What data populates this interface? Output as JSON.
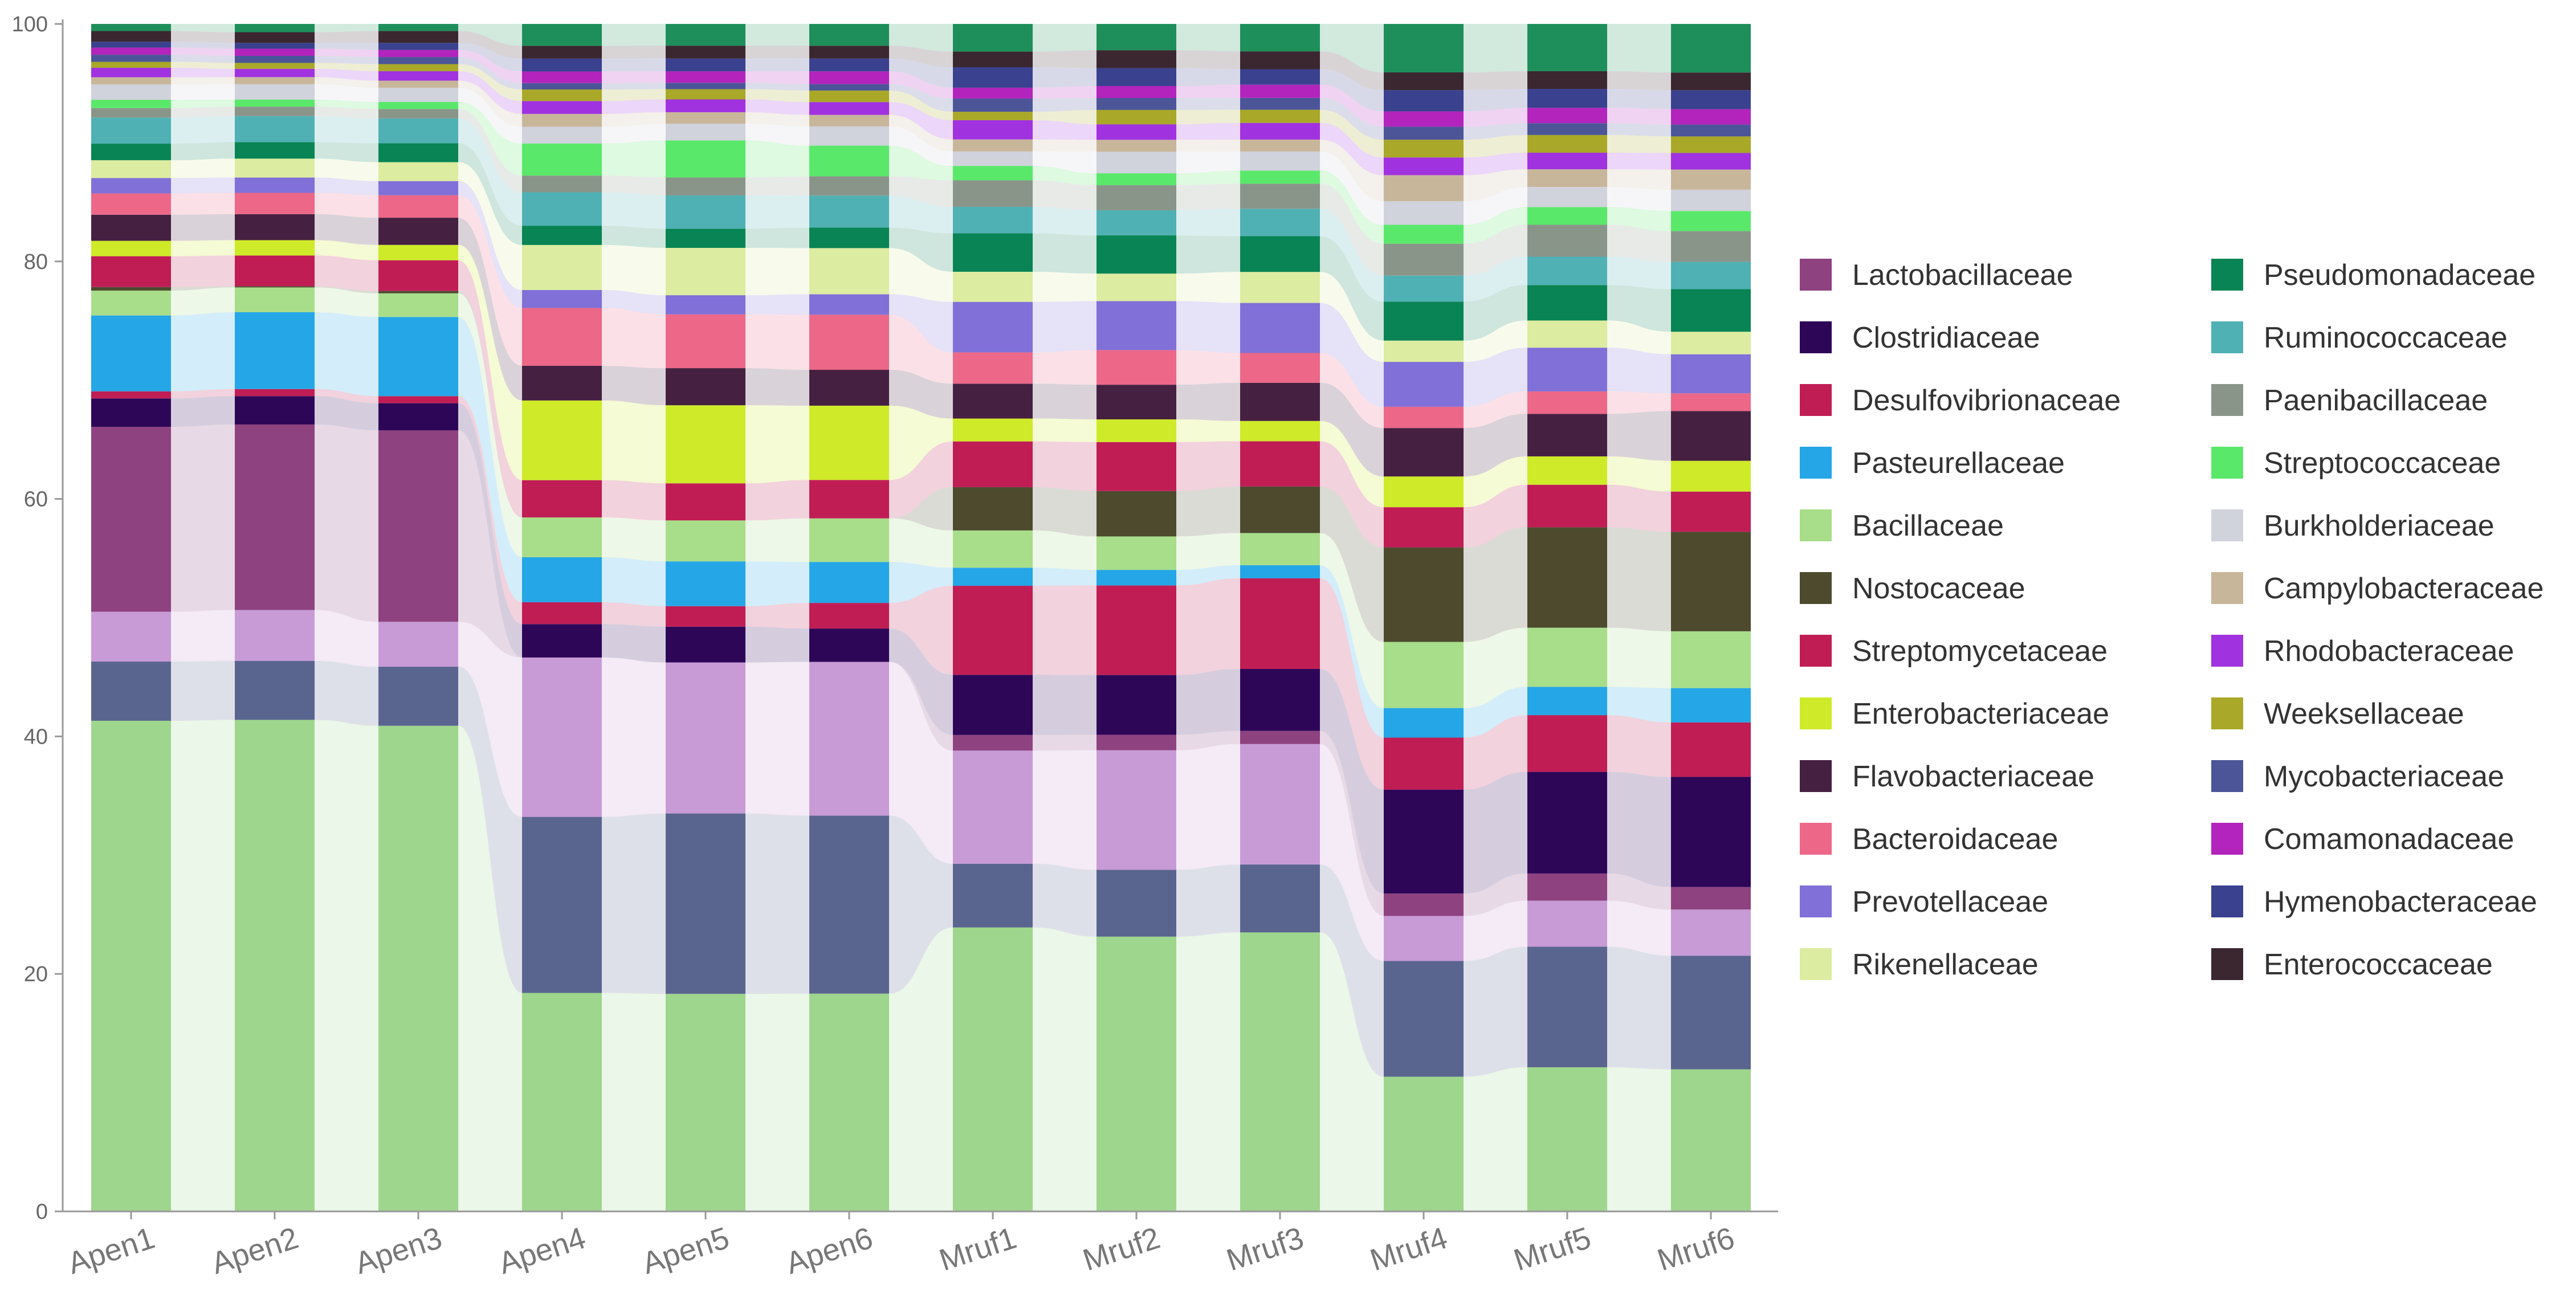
{
  "chart_data": {
    "type": "bar",
    "stacked": true,
    "normalized": true,
    "categories": [
      "Apen1",
      "Apen2",
      "Apen3",
      "Apen4",
      "Apen5",
      "Apen6",
      "Mruf1",
      "Mruf2",
      "Mruf3",
      "Mruf4",
      "Mruf5",
      "Mruf6"
    ],
    "ylim": [
      0,
      100
    ],
    "yticks": [
      0,
      20,
      40,
      60,
      80,
      100
    ],
    "legend_position": "right",
    "grid": false,
    "series": [
      {
        "name": "",
        "color": "#9dd68c",
        "values": [
          41.4,
          41.6,
          41.1,
          17.0,
          17.0,
          17.0,
          23.6,
          23.0,
          23.4,
          11.4,
          12.2,
          12.0
        ]
      },
      {
        "name": "",
        "color": "#5a658f",
        "values": [
          5.0,
          5.0,
          5.0,
          13.7,
          14.1,
          13.9,
          5.3,
          5.6,
          5.7,
          9.8,
          10.2,
          9.6
        ]
      },
      {
        "name": "",
        "color": "#c89bd6",
        "values": [
          4.2,
          4.3,
          3.8,
          12.4,
          11.8,
          12.0,
          9.4,
          10.0,
          10.1,
          3.8,
          3.9,
          3.9
        ]
      },
      {
        "name": "Lactobacillaceae",
        "color": "#8e4280",
        "values": [
          15.6,
          15.7,
          16.2,
          0,
          0,
          0,
          1.3,
          1.3,
          1.1,
          1.9,
          2.3,
          1.9
        ]
      },
      {
        "name": "Clostridiaceae",
        "color": "#2e0658",
        "values": [
          2.4,
          2.4,
          2.3,
          2.6,
          2.8,
          2.6,
          5.0,
          5.0,
          5.2,
          8.8,
          8.6,
          9.3
        ]
      },
      {
        "name": "Desulfovibrionaceae",
        "color": "#c01d55",
        "values": [
          0.6,
          0.6,
          0.6,
          1.7,
          1.6,
          2.0,
          7.4,
          7.5,
          7.6,
          4.4,
          4.8,
          4.6
        ]
      },
      {
        "name": "Pasteurellaceae",
        "color": "#25a6e6",
        "values": [
          6.4,
          6.5,
          6.7,
          3.5,
          3.5,
          3.2,
          1.5,
          1.3,
          1.1,
          2.5,
          2.4,
          2.9
        ]
      },
      {
        "name": "Bacillaceae",
        "color": "#a8dd8a",
        "values": [
          2.1,
          2.1,
          2.0,
          3.1,
          3.2,
          3.4,
          3.1,
          2.8,
          2.7,
          5.6,
          5.0,
          4.8
        ]
      },
      {
        "name": "Nostocaceae",
        "color": "#4d4a2e",
        "values": [
          0.3,
          0.1,
          0.2,
          0,
          0,
          0,
          3.6,
          3.8,
          3.9,
          8.0,
          8.5,
          8.4
        ]
      },
      {
        "name": "Streptomycetaceae",
        "color": "#c01d55",
        "values": [
          2.6,
          2.6,
          2.6,
          2.9,
          2.9,
          3.0,
          3.8,
          4.1,
          3.8,
          3.4,
          3.6,
          3.4
        ]
      },
      {
        "name": "Enterobacteriaceae",
        "color": "#cfea28",
        "values": [
          1.3,
          1.3,
          1.3,
          6.2,
          6.1,
          5.8,
          1.9,
          1.9,
          1.7,
          2.6,
          2.4,
          2.6
        ]
      },
      {
        "name": "Flavobacteriaceae",
        "color": "#462041",
        "values": [
          2.2,
          2.2,
          2.3,
          2.7,
          2.9,
          2.8,
          2.9,
          2.9,
          3.2,
          4.1,
          3.6,
          4.2
        ]
      },
      {
        "name": "Bacteroidaceae",
        "color": "#ec6788",
        "values": [
          1.8,
          1.8,
          1.9,
          4.5,
          4.2,
          4.3,
          2.6,
          2.9,
          2.5,
          1.8,
          1.9,
          1.5
        ]
      },
      {
        "name": "Prevotellaceae",
        "color": "#8070d8",
        "values": [
          1.3,
          1.3,
          1.2,
          1.4,
          1.5,
          1.6,
          4.2,
          4.1,
          4.2,
          3.8,
          3.7,
          3.3
        ]
      },
      {
        "name": "Rikenellaceae",
        "color": "#dcecA0",
        "values": [
          1.5,
          1.6,
          1.6,
          3.5,
          3.7,
          3.6,
          2.5,
          2.3,
          2.6,
          1.8,
          2.3,
          1.9
        ]
      },
      {
        "name": "Pseudomonadaceae",
        "color": "#098454",
        "values": [
          1.4,
          1.4,
          1.6,
          1.5,
          1.5,
          1.6,
          3.2,
          3.2,
          3.0,
          3.3,
          3.0,
          3.6
        ]
      },
      {
        "name": "Ruminococcaceae",
        "color": "#4fb1b4",
        "values": [
          2.2,
          2.2,
          2.1,
          2.6,
          2.6,
          2.5,
          2.2,
          2.1,
          2.3,
          2.2,
          2.4,
          2.3
        ]
      },
      {
        "name": "Paenibacillaceae",
        "color": "#8a958a",
        "values": [
          0.8,
          0.8,
          0.8,
          1.3,
          1.4,
          1.5,
          2.2,
          2.1,
          2.1,
          2.7,
          2.7,
          2.6
        ]
      },
      {
        "name": "Streptococcaceae",
        "color": "#5ae86a",
        "values": [
          0.7,
          0.6,
          0.6,
          2.5,
          2.9,
          2.4,
          1.2,
          1.0,
          1.1,
          1.6,
          1.5,
          1.7
        ]
      },
      {
        "name": "Burkholderiaceae",
        "color": "#d0d2dc",
        "values": [
          1.3,
          1.3,
          1.2,
          1.3,
          1.3,
          1.5,
          1.2,
          1.8,
          1.6,
          2.0,
          1.7,
          1.8
        ]
      },
      {
        "name": "Campylobacteraceae",
        "color": "#c8b69a",
        "values": [
          0.6,
          0.6,
          0.6,
          1.0,
          0.9,
          0.9,
          1.0,
          1.0,
          1.0,
          2.2,
          1.5,
          1.7
        ]
      },
      {
        "name": "Rhodobacteraceae",
        "color": "#a032e0",
        "values": [
          0.8,
          0.7,
          0.8,
          1.0,
          1.0,
          1.0,
          1.6,
          1.3,
          1.4,
          1.5,
          1.4,
          1.4
        ]
      },
      {
        "name": "Weeksellaceae",
        "color": "#a9a828",
        "values": [
          0.5,
          0.5,
          0.6,
          0.9,
          0.8,
          0.9,
          0.7,
          1.2,
          1.1,
          1.5,
          1.5,
          1.4
        ]
      },
      {
        "name": "Mycobacteriaceae",
        "color": "#4b5598",
        "values": [
          0.6,
          0.6,
          0.6,
          0.5,
          0.5,
          0.5,
          1.1,
          1.0,
          1.0,
          1.1,
          1.0,
          1.0
        ]
      },
      {
        "name": "Comamonadaceae",
        "color": "#b224bc",
        "values": [
          0.6,
          0.6,
          0.6,
          0.9,
          0.9,
          1.0,
          0.9,
          1.0,
          1.1,
          1.3,
          1.3,
          1.3
        ]
      },
      {
        "name": "Hymenobacteraceae",
        "color": "#3a418e",
        "values": [
          0.5,
          0.5,
          0.6,
          1.0,
          1.0,
          1.0,
          1.7,
          1.5,
          1.3,
          1.8,
          1.6,
          1.6
        ]
      },
      {
        "name": "Enterococcaceae",
        "color": "#3a2730",
        "values": [
          0.9,
          0.9,
          1.0,
          1.0,
          1.0,
          1.0,
          1.3,
          1.5,
          1.5,
          1.5,
          1.5,
          1.5
        ]
      },
      {
        "name": "",
        "color": "#1e8f5a",
        "values": [
          0.6,
          0.7,
          0.6,
          1.7,
          1.7,
          1.7,
          2.3,
          2.2,
          2.3,
          4.1,
          4.0,
          4.1
        ]
      }
    ]
  }
}
